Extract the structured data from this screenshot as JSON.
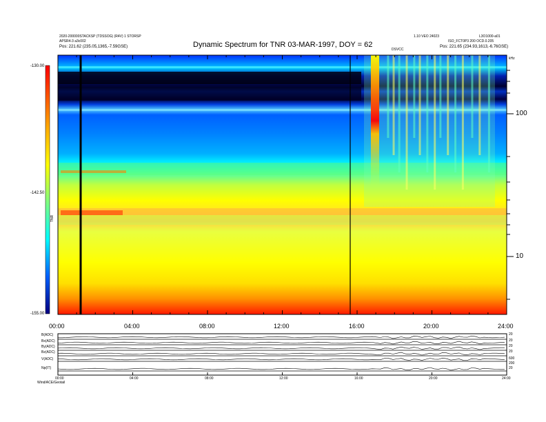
{
  "header": {
    "title": "Dynamic Spectrum for TNR 03-MAR-1997, DOY = 62",
    "meta_left_1": "2020-200000STACKSP (TDSSOG) (R4V) 1 STORSP",
    "meta_left_2": "APSR4-3 a3c002",
    "meta_left_3": "Pos: 221.62 (235.05,1365,-7.59GSE)",
    "meta_right_1": "1.10 VEO 24023",
    "meta_right_2": "L3O1000-a01",
    "meta_right_3": "ISO_FCT0P3 200 OCD.0.205",
    "meta_right_4": "Pos: 221.65 (234.93,1613,-6.76GSE)",
    "marker_label": "DSVCC"
  },
  "colorbar": {
    "labels": [
      "-130.00",
      "-142.50",
      "-155.00"
    ],
    "unit_label": "TNR"
  },
  "right_axis": {
    "unit": "kHz",
    "ticks": [
      "100",
      "10"
    ]
  },
  "time_axis": {
    "ticks": [
      "00:00",
      "04:00",
      "08:00",
      "12:00",
      "16:00",
      "20:00",
      "24:00"
    ]
  },
  "lower_panel": {
    "rows": [
      {
        "label": "B(ADC)",
        "scale_top": "20",
        "scale_bot": "0"
      },
      {
        "label": "Bx(ADC)",
        "scale_top": "20",
        "scale_bot": "0"
      },
      {
        "label": "By(ADC)",
        "scale_top": "20",
        "scale_bot": "0"
      },
      {
        "label": "Bz(ADC)",
        "scale_top": "20",
        "scale_bot": "0"
      },
      {
        "label": "V(ADC)",
        "scale_top": "600",
        "scale_bot": "200"
      },
      {
        "label": "Np(IT)",
        "scale_top": "20",
        "scale_bot": "0"
      }
    ],
    "time_ticks": [
      "00:00",
      "04:00",
      "08:00",
      "12:00",
      "16:00",
      "20:00",
      "24:00"
    ],
    "footer": "Wind/ACE/Geotail"
  },
  "chart_data": {
    "type": "heatmap",
    "title": "Dynamic Spectrum for TNR 03-MAR-1997, DOY = 62",
    "x_axis": {
      "label": "",
      "range": [
        "00:00",
        "24:00"
      ],
      "ticks": [
        "00:00",
        "04:00",
        "08:00",
        "12:00",
        "16:00",
        "20:00",
        "24:00"
      ]
    },
    "y_axis": {
      "label": "kHz",
      "scale": "log",
      "ticks": [
        10,
        100
      ]
    },
    "color_scale": {
      "min": -155.0,
      "mid": -142.5,
      "max": -130.0,
      "colormap": "jet"
    },
    "data_gap_lines_hours": [
      1.25,
      15.85
    ],
    "features": [
      {
        "name": "type III burst cluster",
        "start_hour": 16.8,
        "end_hour": 24.0
      },
      {
        "name": "intense burst",
        "start_hour": 16.9,
        "end_hour": 17.3
      }
    ],
    "colors": {
      "low": "#00008f",
      "mid": "#ffff00",
      "high": "#ff0000"
    }
  }
}
